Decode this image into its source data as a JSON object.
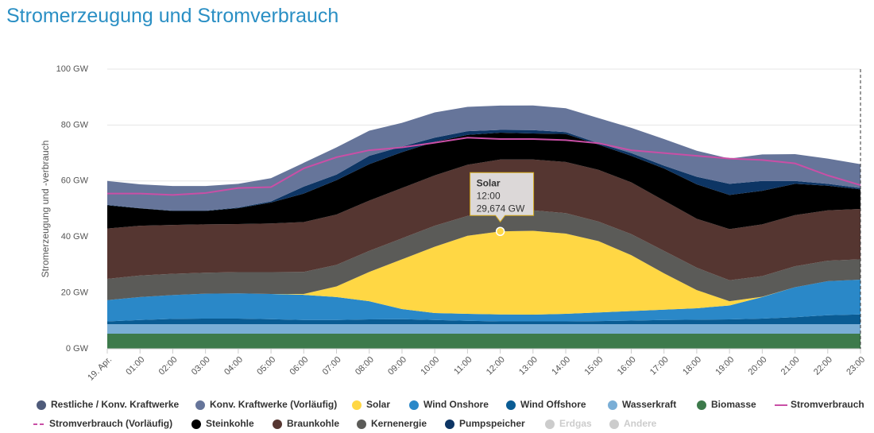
{
  "chart_data": {
    "type": "stacked-area",
    "title": "Stromerzeugung und Stromverbrauch",
    "y_label": "Stromerzeugung und -verbrauch",
    "categories": [
      "19. Apr.",
      "01:00",
      "02:00",
      "03:00",
      "04:00",
      "05:00",
      "06:00",
      "07:00",
      "08:00",
      "09:00",
      "10:00",
      "11:00",
      "12:00",
      "13:00",
      "14:00",
      "15:00",
      "16:00",
      "17:00",
      "18:00",
      "19:00",
      "20:00",
      "21:00",
      "22:00",
      "23:00"
    ],
    "ylim": [
      0,
      100
    ],
    "yticks": [
      {
        "value": 0,
        "label": "0 GW"
      },
      {
        "value": 20,
        "label": "20 GW"
      },
      {
        "value": 40,
        "label": "40 GW"
      },
      {
        "value": 60,
        "label": "60 GW"
      },
      {
        "value": 80,
        "label": "80 GW"
      },
      {
        "value": 100,
        "label": "100 GW"
      }
    ],
    "grid": true,
    "legend": "bottom",
    "series": [
      {
        "name": "Restliche / Konv. Kraftwerke",
        "color": "#4f5b7a"
      },
      {
        "name": "Konv. Kraftwerke (Vorläufig)",
        "color": "#66759a",
        "values": [
          8.5,
          8.5,
          8.8,
          8.8,
          8.5,
          8.3,
          8.5,
          9.7,
          9,
          8.5,
          9,
          8.7,
          8.7,
          8.8,
          8.5,
          9,
          9,
          9.5,
          9.3,
          9,
          9.5,
          9.6,
          9,
          8.5
        ]
      },
      {
        "name": "Solar",
        "color": "#ffd744",
        "values": [
          0,
          0,
          0,
          0,
          0,
          0,
          0.3,
          3.8,
          10.5,
          17.8,
          23.7,
          27.9,
          29.674,
          30,
          28.7,
          25.5,
          20,
          13,
          6.5,
          1.5,
          0.1,
          0,
          0,
          0
        ]
      },
      {
        "name": "Wind Onshore",
        "color": "#2a88c8",
        "values": [
          7.6,
          8.2,
          8.5,
          8.9,
          9,
          9,
          9,
          8.2,
          6.5,
          3.6,
          2.5,
          2.5,
          2.5,
          2.4,
          2.7,
          3.1,
          3.4,
          3.7,
          4.1,
          5,
          7.7,
          10.7,
          12.2,
          12.4
        ]
      },
      {
        "name": "Wind Offshore",
        "color": "#0a5c94",
        "values": [
          1,
          1.5,
          1.9,
          2,
          2,
          1.8,
          1.5,
          1.5,
          1.7,
          1.8,
          1.5,
          1.2,
          1,
          1,
          1,
          1.1,
          1.3,
          1.5,
          1.6,
          1.7,
          2,
          2.5,
          3.2,
          3.5
        ]
      },
      {
        "name": "Wasserkraft",
        "color": "#7aaed6",
        "values": [
          3.4,
          3.4,
          3.4,
          3.4,
          3.4,
          3.4,
          3.4,
          3.4,
          3.4,
          3.4,
          3.4,
          3.4,
          3.4,
          3.4,
          3.4,
          3.4,
          3.4,
          3.4,
          3.4,
          3.4,
          3.4,
          3.4,
          3.4,
          3.4
        ]
      },
      {
        "name": "Biomasse",
        "color": "#3d7a4b",
        "values": [
          5.4,
          5.4,
          5.4,
          5.4,
          5.4,
          5.4,
          5.4,
          5.4,
          5.4,
          5.4,
          5.4,
          5.4,
          5.4,
          5.4,
          5.4,
          5.4,
          5.4,
          5.4,
          5.4,
          5.4,
          5.4,
          5.4,
          5.4,
          5.4
        ]
      },
      {
        "name": "Stromverbrauch",
        "color": "#c94fa6",
        "style": "line",
        "values": [
          55.5,
          55.5,
          55,
          55.7,
          57.5,
          57.8,
          64.5,
          68.5,
          71,
          72,
          73.7,
          75.5,
          75,
          75,
          74.6,
          73.5,
          71,
          70,
          69,
          68,
          67.5,
          66.3,
          62,
          58.5
        ]
      },
      {
        "name": "Stromverbrauch (Vorläufig)",
        "color": "#c94fa6",
        "style": "dashed"
      },
      {
        "name": "Steinkohle",
        "color": "#000000",
        "values": [
          8.3,
          6.2,
          5,
          4.8,
          5.7,
          7.5,
          10.2,
          12.3,
          13,
          12.8,
          12,
          10.7,
          9.6,
          9.3,
          10,
          9,
          9.5,
          11.5,
          12.3,
          12.2,
          12,
          11.2,
          8.8,
          7
        ]
      },
      {
        "name": "Braunkohle",
        "color": "#553631",
        "values": [
          18,
          17.8,
          17.5,
          17.3,
          17.2,
          17.4,
          17.8,
          18,
          18,
          18,
          18,
          18.3,
          18.2,
          18.2,
          18.3,
          18.5,
          18.5,
          18,
          17.5,
          18.3,
          18.5,
          18.3,
          18,
          18
        ]
      },
      {
        "name": "Kernenergie",
        "color": "#5b5b58",
        "values": [
          7.6,
          7.7,
          7.6,
          7.5,
          7.6,
          7.8,
          7.9,
          7.7,
          7.5,
          7.5,
          7.5,
          7.1,
          7.5,
          7.3,
          7.3,
          7,
          7.5,
          8,
          8,
          7.5,
          7.4,
          7.5,
          7.3,
          7.3
        ]
      },
      {
        "name": "Pumpspeicher",
        "color": "#0d3564",
        "values": [
          0.2,
          0.1,
          0.1,
          0.1,
          0.2,
          0.4,
          2.5,
          2,
          3,
          2,
          1.5,
          1.3,
          1,
          1.2,
          0.7,
          0.5,
          1,
          1,
          2.7,
          4,
          3.5,
          1,
          0.7,
          0.5
        ]
      },
      {
        "name": "Erdgas",
        "color": "#cccccc",
        "visible": false
      },
      {
        "name": "Andere",
        "color": "#cccccc",
        "visible": false
      }
    ],
    "tooltip": {
      "series": "Solar",
      "time": "12:00",
      "value_label": "29,674 GW"
    }
  }
}
